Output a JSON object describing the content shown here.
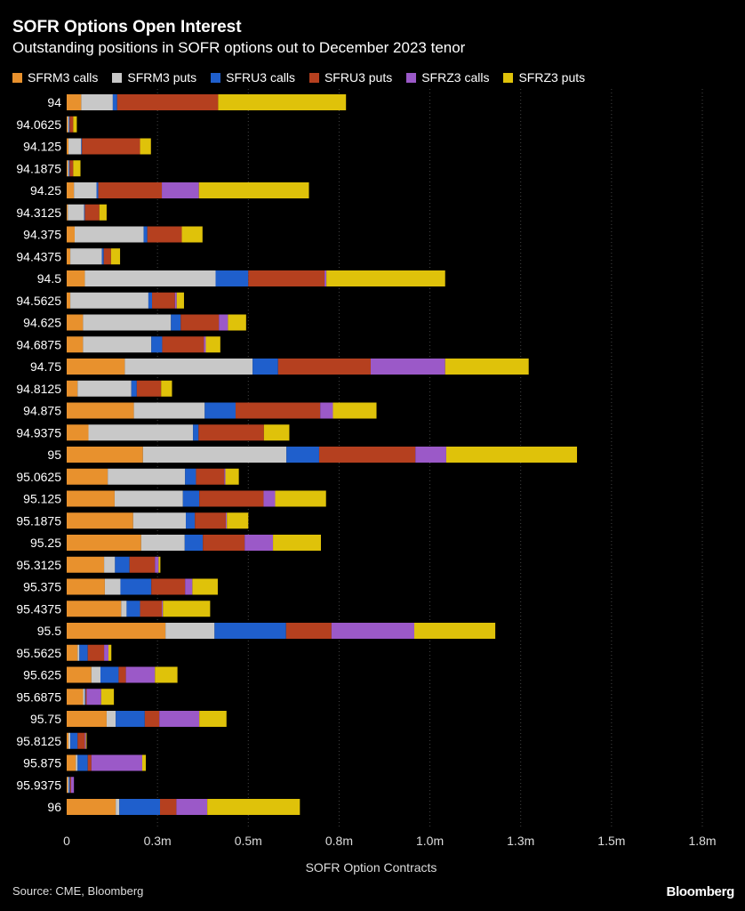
{
  "header": {
    "title": "SOFR Options Open Interest",
    "subtitle": "Outstanding positions in SOFR options out to December 2023 tenor"
  },
  "footer": {
    "source": "Source: CME, Bloomberg",
    "brand": "Bloomberg"
  },
  "colors": {
    "background": "#000000",
    "grid": "#444444",
    "series": [
      "#e8912d",
      "#c8c8c8",
      "#1f5fcc",
      "#b5401f",
      "#9b59c8",
      "#dfc20a"
    ]
  },
  "chart_data": {
    "type": "bar",
    "orientation": "horizontal",
    "stacked": true,
    "title": "SOFR Options Open Interest",
    "subtitle": "Outstanding positions in SOFR options out to December 2023 tenor",
    "xlabel": "SOFR Option Contracts",
    "ylabel": "",
    "xlim": [
      0,
      1750000
    ],
    "xticks": [
      0,
      250000,
      500000,
      750000,
      1000000,
      1250000,
      1500000,
      1750000
    ],
    "xtick_labels": [
      "0",
      "0.3m",
      "0.5m",
      "0.8m",
      "1.0m",
      "1.3m",
      "1.5m",
      "1.8m"
    ],
    "grid": "vertical",
    "legend_position": "top",
    "categories": [
      "94",
      "94.0625",
      "94.125",
      "94.1875",
      "94.25",
      "94.3125",
      "94.375",
      "94.4375",
      "94.5",
      "94.5625",
      "94.625",
      "94.6875",
      "94.75",
      "94.8125",
      "94.875",
      "94.9375",
      "95",
      "95.0625",
      "95.125",
      "95.1875",
      "95.25",
      "95.3125",
      "95.375",
      "95.4375",
      "95.5",
      "95.5625",
      "95.625",
      "95.6875",
      "95.75",
      "95.8125",
      "95.875",
      "95.9375",
      "96"
    ],
    "series": [
      {
        "name": "SFRM3 calls",
        "values": [
          40000,
          3000,
          5000,
          3000,
          20000,
          3000,
          22000,
          10000,
          50000,
          10000,
          45000,
          45000,
          160000,
          30000,
          185000,
          60000,
          210000,
          113000,
          132000,
          183000,
          205000,
          103000,
          105000,
          150000,
          272000,
          30000,
          68000,
          45000,
          110000,
          5000,
          25000,
          3000,
          135000
        ]
      },
      {
        "name": "SFRM3 puts",
        "values": [
          87000,
          3000,
          35000,
          3000,
          62000,
          45000,
          190000,
          87000,
          360000,
          215000,
          242000,
          188000,
          352000,
          148000,
          195000,
          288000,
          395000,
          213000,
          188000,
          145000,
          120000,
          30000,
          43000,
          15000,
          135000,
          5000,
          25000,
          5000,
          25000,
          5000,
          5000,
          3000,
          10000
        ]
      },
      {
        "name": "SFRU3 calls",
        "values": [
          12000,
          2000,
          2000,
          2000,
          5000,
          2000,
          10000,
          5000,
          90000,
          10000,
          27000,
          30000,
          70000,
          15000,
          85000,
          15000,
          90000,
          30000,
          45000,
          25000,
          50000,
          40000,
          85000,
          37000,
          197000,
          23000,
          50000,
          2000,
          80000,
          20000,
          28000,
          3000,
          112000
        ]
      },
      {
        "name": "SFRU3 puts",
        "values": [
          278000,
          10000,
          160000,
          10000,
          175000,
          40000,
          95000,
          20000,
          210000,
          63000,
          105000,
          115000,
          255000,
          67000,
          233000,
          180000,
          265000,
          78000,
          177000,
          85000,
          115000,
          70000,
          93000,
          60000,
          125000,
          45000,
          20000,
          3000,
          40000,
          20000,
          10000,
          3000,
          45000
        ]
      },
      {
        "name": "SFRZ3 calls",
        "values": [
          0,
          0,
          0,
          0,
          102000,
          0,
          0,
          0,
          5000,
          5000,
          25000,
          5000,
          205000,
          0,
          35000,
          0,
          85000,
          3000,
          32000,
          3000,
          78000,
          10000,
          20000,
          3000,
          228000,
          12000,
          80000,
          40000,
          110000,
          3000,
          140000,
          8000,
          85000
        ]
      },
      {
        "name": "SFRZ3 puts",
        "values": [
          352000,
          10000,
          30000,
          20000,
          303000,
          20000,
          57000,
          25000,
          327000,
          20000,
          50000,
          40000,
          230000,
          30000,
          120000,
          70000,
          360000,
          37000,
          140000,
          59000,
          132000,
          5000,
          70000,
          130000,
          223000,
          8000,
          62000,
          35000,
          75000,
          2000,
          10000,
          0,
          255000
        ]
      }
    ]
  }
}
